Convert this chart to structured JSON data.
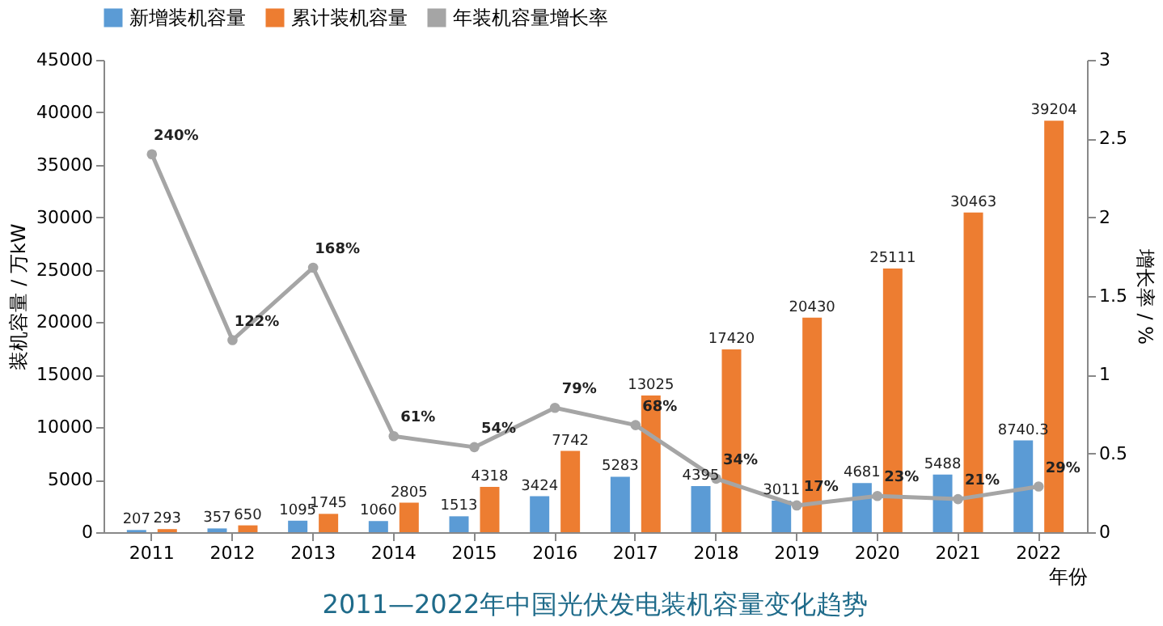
{
  "chart_data": {
    "type": "bar",
    "title": "2011—2022年中国光伏发电装机容量变化趋势",
    "xlabel": "年份",
    "ylabel": "装机容量 / 万kW",
    "y2label": "增长率 / %",
    "categories": [
      "2011",
      "2012",
      "2013",
      "2014",
      "2015",
      "2016",
      "2017",
      "2018",
      "2019",
      "2020",
      "2021",
      "2022"
    ],
    "series": [
      {
        "name": "新增装机容量",
        "color": "#5b9bd5",
        "values": [
          207,
          357,
          1095,
          1060,
          1513,
          3424,
          5283,
          4395,
          3011,
          4681,
          5488,
          8740.3
        ]
      },
      {
        "name": "累计装机容量",
        "color": "#ed7d31",
        "values": [
          293,
          650,
          1745,
          2805,
          4318,
          7742,
          13025,
          17420,
          20430,
          25111,
          30463,
          39204
        ]
      },
      {
        "name": "年装机容量增长率",
        "type": "line",
        "axis": "y2",
        "color": "#a5a5a5",
        "marker": "circle",
        "values": [
          2.4,
          1.22,
          1.68,
          0.61,
          0.54,
          0.79,
          0.68,
          0.34,
          0.17,
          0.23,
          0.21,
          0.29
        ],
        "value_labels": [
          "240%",
          "122%",
          "168%",
          "61%",
          "54%",
          "79%",
          "68%",
          "34%",
          "17%",
          "23%",
          "21%",
          "29%"
        ]
      }
    ],
    "data_labels": true,
    "ylim": [
      0,
      45000
    ],
    "yticks": [
      0,
      5000,
      10000,
      15000,
      20000,
      25000,
      30000,
      35000,
      40000,
      45000
    ],
    "y2lim": [
      0,
      3
    ],
    "y2ticks": [
      0,
      0.5,
      1,
      1.5,
      2,
      2.5,
      3
    ],
    "grid": false,
    "legend": "top"
  }
}
